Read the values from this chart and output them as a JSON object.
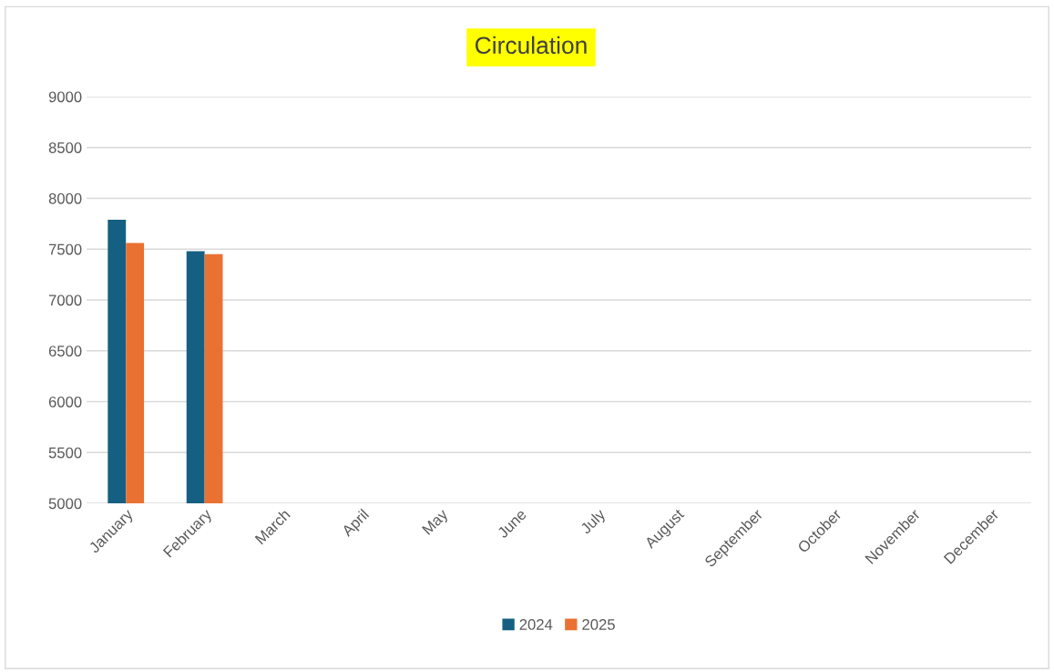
{
  "chart_data": {
    "type": "bar",
    "title": "Circulation",
    "categories": [
      "January",
      "February",
      "March",
      "April",
      "May",
      "June",
      "July",
      "August",
      "September",
      "October",
      "November",
      "December"
    ],
    "series": [
      {
        "name": "2024",
        "color": "#156082",
        "values": [
          7790,
          7480,
          null,
          null,
          null,
          null,
          null,
          null,
          null,
          null,
          null,
          null
        ]
      },
      {
        "name": "2025",
        "color": "#e97132",
        "values": [
          7560,
          7450,
          null,
          null,
          null,
          null,
          null,
          null,
          null,
          null,
          null,
          null
        ]
      }
    ],
    "ylim": [
      5000,
      9000
    ],
    "yticks": [
      5000,
      5500,
      6000,
      6500,
      7000,
      7500,
      8000,
      8500,
      9000
    ],
    "grid": "y",
    "legend": "bottom"
  }
}
